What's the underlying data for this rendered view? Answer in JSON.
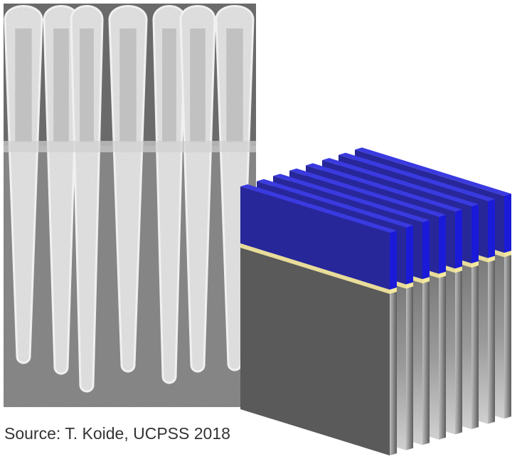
{
  "caption": "Source: T. Koide, UCPSS 2018"
}
